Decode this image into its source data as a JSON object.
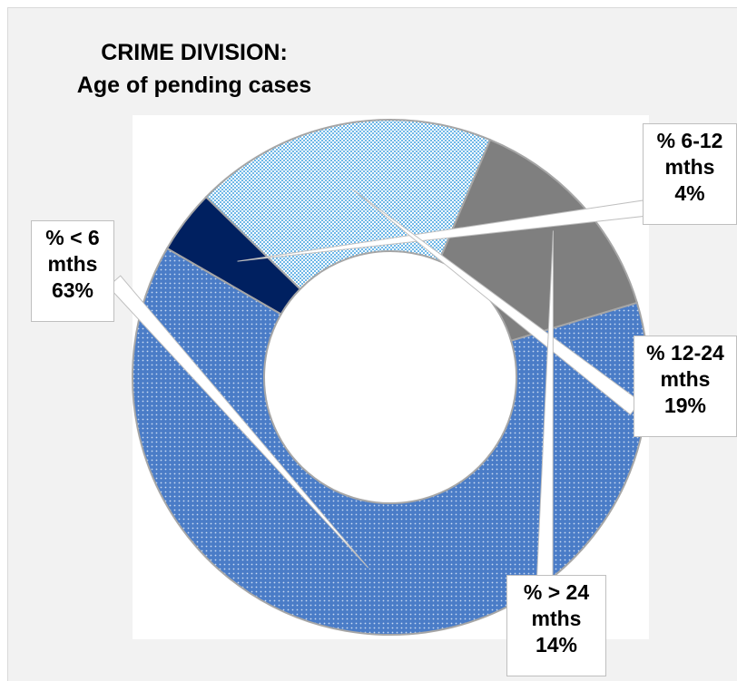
{
  "chart_data": {
    "type": "pie",
    "title": "CRIME DIVISION:",
    "subtitle": "Age of pending cases",
    "donut": true,
    "slices": [
      {
        "label_line1": "% 6-12",
        "label_line2": "mths",
        "pct_label": "4%",
        "value": 4,
        "color": "#002060",
        "pattern": "solid"
      },
      {
        "label_line1": "% 12-24",
        "label_line2": "mths",
        "pct_label": "19%",
        "value": 19,
        "color": "#a9d8f4",
        "pattern": "checker"
      },
      {
        "label_line1": "% > 24",
        "label_line2": "mths",
        "pct_label": "14%",
        "value": 14,
        "color": "#7f7f7f",
        "pattern": "solid"
      },
      {
        "label_line1": "% < 6",
        "label_line2": "mths",
        "pct_label": "63%",
        "value": 63,
        "color": "#4a7cc7",
        "pattern": "dots"
      }
    ]
  }
}
